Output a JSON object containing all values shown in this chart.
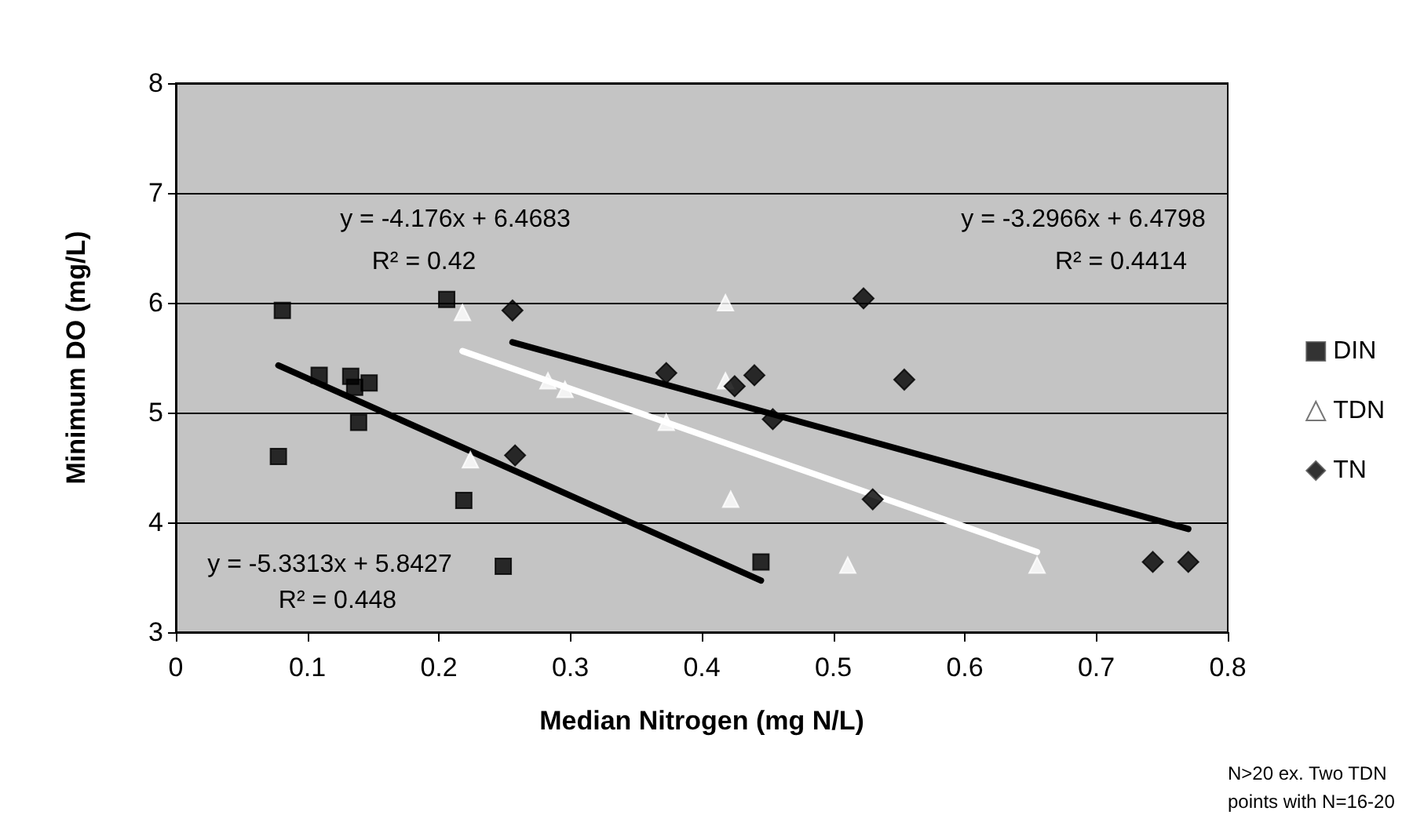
{
  "chart_data": {
    "type": "scatter",
    "xlabel": "Median Nitrogen (mg N/L)",
    "ylabel": "Minimum DO (mg/L)",
    "xlim": [
      0,
      0.8
    ],
    "xticks": [
      0,
      0.1,
      0.2,
      0.3,
      0.4,
      0.5,
      0.6,
      0.7,
      0.8
    ],
    "ylim": [
      3,
      8
    ],
    "yticks": [
      3,
      4,
      5,
      6,
      7,
      8
    ],
    "grid": "y",
    "legend": "right",
    "series": [
      {
        "name": "DIN",
        "color": "#000000",
        "marker": "square",
        "x": [
          0.081,
          0.078,
          0.109,
          0.133,
          0.136,
          0.147,
          0.139,
          0.206,
          0.219,
          0.249,
          0.445
        ],
        "values": [
          5.93,
          4.6,
          5.34,
          5.33,
          5.23,
          5.27,
          4.91,
          6.03,
          4.2,
          3.6,
          3.64
        ]
      },
      {
        "name": "TDN",
        "color": "#ffffff",
        "marker": "triangle",
        "x": [
          0.218,
          0.224,
          0.283,
          0.296,
          0.418,
          0.373,
          0.422,
          0.418,
          0.511,
          0.655
        ],
        "values": [
          5.91,
          4.57,
          5.29,
          5.21,
          6.0,
          4.91,
          4.21,
          5.29,
          3.61,
          3.61
        ]
      },
      {
        "name": "TN",
        "color": "#000000",
        "marker": "diamond",
        "x": [
          0.256,
          0.258,
          0.373,
          0.425,
          0.44,
          0.454,
          0.523,
          0.554,
          0.53,
          0.743,
          0.77
        ],
        "values": [
          5.93,
          4.61,
          5.36,
          5.24,
          5.34,
          4.94,
          6.04,
          5.3,
          4.21,
          3.64,
          3.64
        ]
      },
      {
        "type": "line",
        "color": "#000000",
        "marker": "none",
        "x": [
          0.078,
          0.445
        ],
        "values": [
          5.43,
          3.47
        ]
      },
      {
        "type": "line",
        "color": "#ffffff",
        "marker": "none",
        "x": [
          0.218,
          0.655
        ],
        "values": [
          5.56,
          3.73
        ]
      },
      {
        "type": "line",
        "color": "#000000",
        "marker": "none",
        "x": [
          0.256,
          0.77
        ],
        "values": [
          5.64,
          3.94
        ]
      }
    ],
    "annotations": [
      "y = -4.176x + 6.4683",
      "R² = 0.42",
      "y = -3.2966x + 6.4798",
      "R² = 0.4414",
      "y = -5.3313x + 5.8427",
      "R² = 0.448",
      "N>20 ex. Two TDN points with N=16-20"
    ]
  }
}
